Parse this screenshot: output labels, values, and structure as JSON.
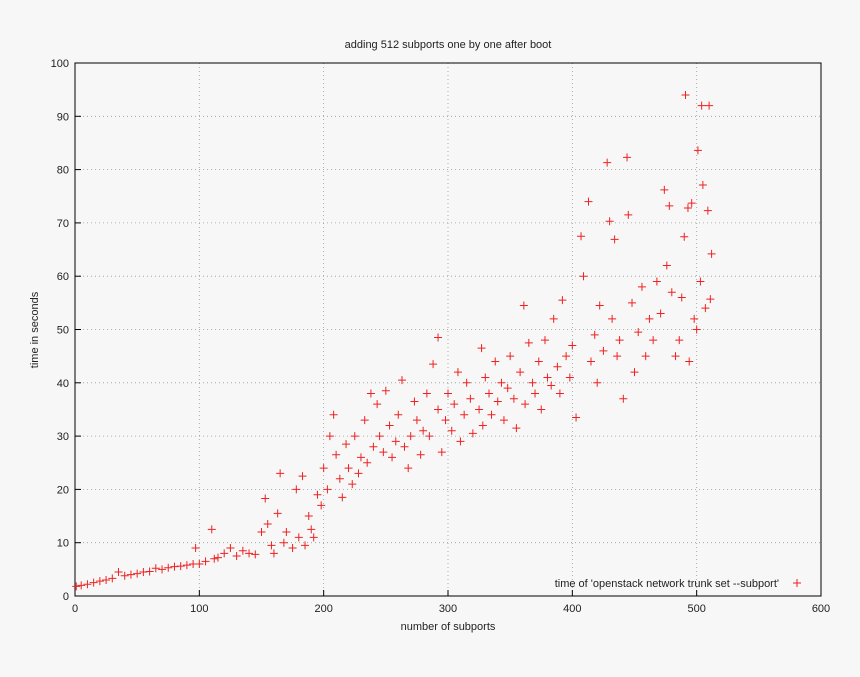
{
  "chart_data": {
    "type": "scatter",
    "title": "adding 512 subports one by one after boot",
    "xlabel": "number of subports",
    "ylabel": "time in seconds",
    "xlim": [
      0,
      600
    ],
    "xticks": [
      0,
      100,
      200,
      300,
      400,
      500,
      600
    ],
    "ylim": [
      0,
      100
    ],
    "yticks": [
      0,
      10,
      20,
      30,
      40,
      50,
      60,
      70,
      80,
      90,
      100
    ],
    "grid": true,
    "legend": "bottom-right",
    "x": [
      1,
      5,
      10,
      15,
      20,
      25,
      30,
      35,
      40,
      45,
      50,
      55,
      60,
      65,
      70,
      75,
      80,
      85,
      90,
      95,
      97,
      100,
      105,
      110,
      112,
      115,
      120,
      125,
      130,
      135,
      140,
      145,
      150,
      153,
      155,
      158,
      160,
      163,
      165,
      168,
      170,
      175,
      178,
      180,
      183,
      185,
      188,
      190,
      192,
      195,
      198,
      200,
      203,
      205,
      208,
      210,
      213,
      215,
      218,
      220,
      223,
      225,
      228,
      230,
      233,
      235,
      238,
      240,
      243,
      245,
      248,
      250,
      253,
      255,
      258,
      260,
      263,
      265,
      268,
      270,
      273,
      275,
      278,
      280,
      283,
      285,
      288,
      292,
      292,
      295,
      298,
      300,
      303,
      305,
      308,
      310,
      313,
      315,
      318,
      320,
      327,
      325,
      328,
      330,
      333,
      335,
      338,
      340,
      343,
      345,
      348,
      350,
      353,
      355,
      358,
      361,
      362,
      365,
      368,
      370,
      373,
      375,
      378,
      380,
      383,
      385,
      388,
      390,
      392,
      395,
      398,
      400,
      403,
      407,
      409,
      413,
      415,
      418,
      420,
      422,
      425,
      428,
      430,
      432,
      434,
      436,
      438,
      441,
      444,
      445,
      448,
      450,
      453,
      456,
      459,
      462,
      465,
      468,
      471,
      474,
      476,
      478,
      480,
      483,
      486,
      488,
      490,
      491,
      493,
      494,
      496,
      498,
      500,
      501,
      503,
      504,
      505,
      507,
      509,
      510,
      511,
      512
    ],
    "series": [
      {
        "name": "time of 'openstack network trunk set --subport'",
        "color": "#ee2222",
        "values": [
          1.8,
          2.0,
          2.2,
          2.5,
          2.8,
          3.0,
          3.3,
          4.5,
          3.8,
          4.0,
          4.2,
          4.5,
          4.6,
          5.2,
          5.0,
          5.3,
          5.5,
          5.6,
          5.8,
          6.0,
          9.0,
          6.0,
          6.5,
          12.5,
          7.0,
          7.2,
          8.0,
          9.0,
          7.5,
          8.5,
          8.0,
          7.8,
          12.0,
          18.3,
          13.5,
          9.5,
          8.0,
          15.5,
          23.0,
          10.0,
          12.0,
          9.0,
          20.0,
          11.0,
          22.5,
          9.5,
          15.0,
          12.5,
          11.0,
          19.0,
          17.0,
          24.0,
          20.0,
          30.0,
          34.0,
          26.5,
          22.0,
          18.5,
          28.5,
          24.0,
          21.0,
          30.0,
          23.0,
          26.0,
          33.0,
          25.0,
          38.0,
          28.0,
          36.0,
          30.0,
          27.0,
          38.5,
          32.0,
          26.0,
          29.0,
          34.0,
          40.5,
          28.0,
          24.0,
          30.0,
          36.5,
          33.0,
          26.5,
          31.0,
          38.0,
          30.0,
          43.5,
          48.5,
          35.0,
          27.0,
          33.0,
          38.0,
          31.0,
          36.0,
          42.0,
          29.0,
          34.0,
          40.0,
          37.0,
          30.5,
          46.5,
          35.0,
          32.0,
          41.0,
          38.0,
          34.0,
          44.0,
          36.5,
          40.0,
          33.0,
          39.0,
          45.0,
          37.0,
          31.5,
          42.0,
          54.5,
          36.0,
          47.5,
          40.0,
          38.0,
          44.0,
          35.0,
          48.0,
          41.0,
          39.5,
          52.0,
          43.0,
          38.0,
          55.5,
          45.0,
          41.0,
          47.0,
          33.5,
          67.5,
          60.0,
          74.0,
          44.0,
          49.0,
          40.0,
          54.5,
          46.0,
          81.3,
          70.3,
          52.0,
          66.9,
          45.0,
          48.0,
          37.0,
          82.3,
          71.5,
          55.0,
          42.0,
          49.5,
          58.0,
          45.0,
          52.0,
          48.0,
          59.0,
          53.0,
          76.2,
          62.0,
          73.2,
          57.0,
          45.0,
          48.0,
          56.0,
          67.4,
          94.0,
          72.8,
          44.0,
          73.7,
          52.0,
          50.0,
          83.6,
          59.0,
          92.0,
          77.1,
          54.0,
          72.3,
          92.0,
          55.7,
          64.2
        ]
      }
    ]
  }
}
